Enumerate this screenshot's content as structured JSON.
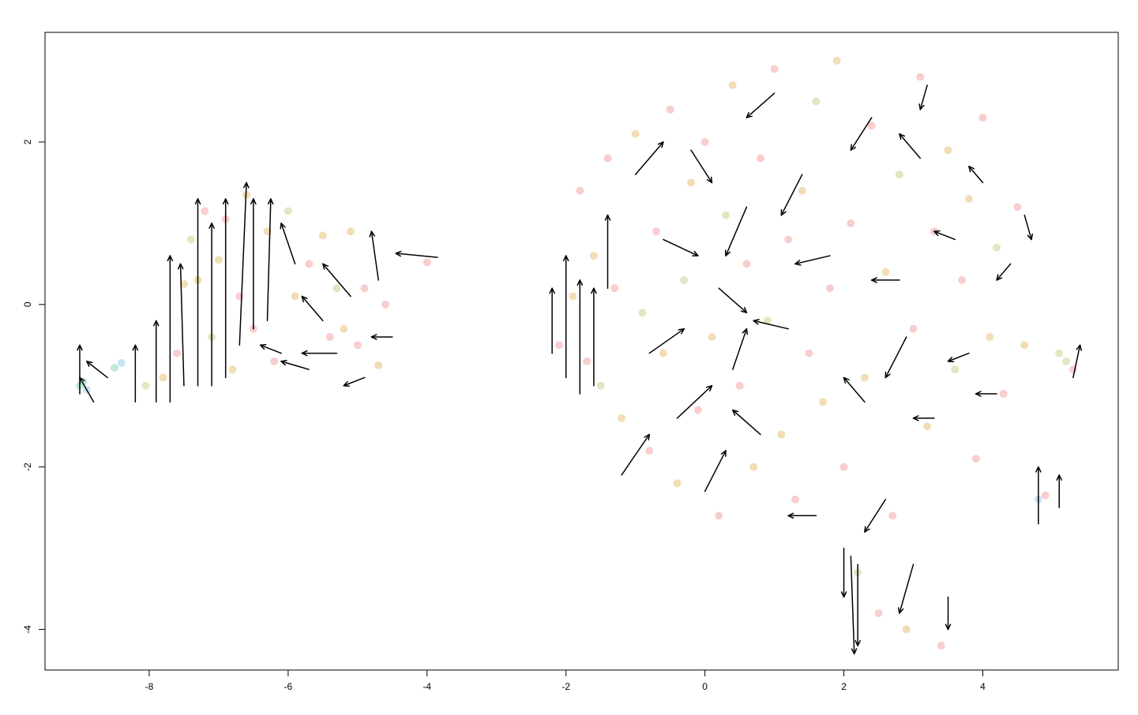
{
  "chart_data": {
    "type": "scatter",
    "title": "",
    "xlabel": "",
    "ylabel": "",
    "xlim": [
      -9.5,
      5.95
    ],
    "ylim": [
      -4.5,
      3.35
    ],
    "grid": false,
    "legend": "none",
    "x_ticks": [
      -8,
      -6,
      -4,
      -2,
      0,
      2,
      4
    ],
    "y_ticks": [
      -4,
      -2,
      0,
      2
    ],
    "colors": {
      "salmon": "#f4a6a6",
      "ochre": "#e8c27a",
      "olive": "#c9d38c",
      "teal": "#8fd8c0",
      "sky": "#9ad0ec",
      "arrow": "#000000"
    },
    "points": [
      {
        "x": -9.0,
        "y": -1.0,
        "c": "teal"
      },
      {
        "x": -8.95,
        "y": -0.95,
        "c": "teal"
      },
      {
        "x": -8.9,
        "y": -1.05,
        "c": "sky"
      },
      {
        "x": -8.5,
        "y": -0.78,
        "c": "teal"
      },
      {
        "x": -8.4,
        "y": -0.72,
        "c": "sky"
      },
      {
        "x": -8.05,
        "y": -1.0,
        "c": "olive"
      },
      {
        "x": -7.8,
        "y": -0.9,
        "c": "ochre"
      },
      {
        "x": -7.6,
        "y": -0.6,
        "c": "salmon"
      },
      {
        "x": -7.5,
        "y": 0.25,
        "c": "ochre"
      },
      {
        "x": -7.4,
        "y": 0.8,
        "c": "olive"
      },
      {
        "x": -7.3,
        "y": 0.3,
        "c": "ochre"
      },
      {
        "x": -7.2,
        "y": 1.15,
        "c": "salmon"
      },
      {
        "x": -7.1,
        "y": -0.4,
        "c": "olive"
      },
      {
        "x": -7.0,
        "y": 0.55,
        "c": "ochre"
      },
      {
        "x": -6.9,
        "y": 1.05,
        "c": "salmon"
      },
      {
        "x": -6.8,
        "y": -0.8,
        "c": "ochre"
      },
      {
        "x": -6.7,
        "y": 0.1,
        "c": "salmon"
      },
      {
        "x": -6.6,
        "y": 1.35,
        "c": "ochre"
      },
      {
        "x": -6.5,
        "y": -0.3,
        "c": "salmon"
      },
      {
        "x": -6.3,
        "y": 0.9,
        "c": "ochre"
      },
      {
        "x": -6.2,
        "y": -0.7,
        "c": "salmon"
      },
      {
        "x": -6.0,
        "y": 1.15,
        "c": "olive"
      },
      {
        "x": -5.9,
        "y": 0.1,
        "c": "ochre"
      },
      {
        "x": -5.7,
        "y": 0.5,
        "c": "salmon"
      },
      {
        "x": -5.5,
        "y": 0.85,
        "c": "ochre"
      },
      {
        "x": -5.4,
        "y": -0.4,
        "c": "salmon"
      },
      {
        "x": -5.3,
        "y": 0.2,
        "c": "olive"
      },
      {
        "x": -5.2,
        "y": -0.3,
        "c": "ochre"
      },
      {
        "x": -5.1,
        "y": 0.9,
        "c": "ochre"
      },
      {
        "x": -5.0,
        "y": -0.5,
        "c": "salmon"
      },
      {
        "x": -4.9,
        "y": 0.2,
        "c": "salmon"
      },
      {
        "x": -4.7,
        "y": -0.75,
        "c": "ochre"
      },
      {
        "x": -4.6,
        "y": 0.0,
        "c": "salmon"
      },
      {
        "x": -4.0,
        "y": 0.52,
        "c": "salmon"
      },
      {
        "x": -2.1,
        "y": -0.5,
        "c": "salmon"
      },
      {
        "x": -1.9,
        "y": 0.1,
        "c": "ochre"
      },
      {
        "x": -1.8,
        "y": 1.4,
        "c": "salmon"
      },
      {
        "x": -1.7,
        "y": -0.7,
        "c": "salmon"
      },
      {
        "x": -1.6,
        "y": 0.6,
        "c": "ochre"
      },
      {
        "x": -1.5,
        "y": -1.0,
        "c": "olive"
      },
      {
        "x": -1.4,
        "y": 1.8,
        "c": "salmon"
      },
      {
        "x": -1.3,
        "y": 0.2,
        "c": "salmon"
      },
      {
        "x": -1.2,
        "y": -1.4,
        "c": "ochre"
      },
      {
        "x": -1.0,
        "y": 2.1,
        "c": "ochre"
      },
      {
        "x": -0.9,
        "y": -0.1,
        "c": "olive"
      },
      {
        "x": -0.8,
        "y": -1.8,
        "c": "salmon"
      },
      {
        "x": -0.7,
        "y": 0.9,
        "c": "salmon"
      },
      {
        "x": -0.6,
        "y": -0.6,
        "c": "ochre"
      },
      {
        "x": -0.5,
        "y": 2.4,
        "c": "salmon"
      },
      {
        "x": -0.4,
        "y": -2.2,
        "c": "ochre"
      },
      {
        "x": -0.3,
        "y": 0.3,
        "c": "olive"
      },
      {
        "x": -0.2,
        "y": 1.5,
        "c": "ochre"
      },
      {
        "x": -0.1,
        "y": -1.3,
        "c": "salmon"
      },
      {
        "x": 0.0,
        "y": 2.0,
        "c": "salmon"
      },
      {
        "x": 0.1,
        "y": -0.4,
        "c": "ochre"
      },
      {
        "x": 0.2,
        "y": -2.6,
        "c": "salmon"
      },
      {
        "x": 0.3,
        "y": 1.1,
        "c": "olive"
      },
      {
        "x": 0.4,
        "y": 2.7,
        "c": "ochre"
      },
      {
        "x": 0.5,
        "y": -1.0,
        "c": "salmon"
      },
      {
        "x": 0.6,
        "y": 0.5,
        "c": "salmon"
      },
      {
        "x": 0.7,
        "y": -2.0,
        "c": "ochre"
      },
      {
        "x": 0.8,
        "y": 1.8,
        "c": "salmon"
      },
      {
        "x": 0.9,
        "y": -0.2,
        "c": "olive"
      },
      {
        "x": 1.0,
        "y": 2.9,
        "c": "salmon"
      },
      {
        "x": 1.1,
        "y": -1.6,
        "c": "ochre"
      },
      {
        "x": 1.2,
        "y": 0.8,
        "c": "salmon"
      },
      {
        "x": 1.3,
        "y": -2.4,
        "c": "salmon"
      },
      {
        "x": 1.4,
        "y": 1.4,
        "c": "ochre"
      },
      {
        "x": 1.5,
        "y": -0.6,
        "c": "salmon"
      },
      {
        "x": 1.6,
        "y": 2.5,
        "c": "olive"
      },
      {
        "x": 1.7,
        "y": -1.2,
        "c": "ochre"
      },
      {
        "x": 1.8,
        "y": 0.2,
        "c": "salmon"
      },
      {
        "x": 1.9,
        "y": 3.0,
        "c": "ochre"
      },
      {
        "x": 2.0,
        "y": -2.0,
        "c": "salmon"
      },
      {
        "x": 2.1,
        "y": 1.0,
        "c": "salmon"
      },
      {
        "x": 2.2,
        "y": -3.3,
        "c": "olive"
      },
      {
        "x": 2.3,
        "y": -0.9,
        "c": "ochre"
      },
      {
        "x": 2.4,
        "y": 2.2,
        "c": "salmon"
      },
      {
        "x": 2.5,
        "y": -3.8,
        "c": "salmon"
      },
      {
        "x": 2.6,
        "y": 0.4,
        "c": "ochre"
      },
      {
        "x": 2.7,
        "y": -2.6,
        "c": "salmon"
      },
      {
        "x": 2.8,
        "y": 1.6,
        "c": "olive"
      },
      {
        "x": 2.9,
        "y": -4.0,
        "c": "ochre"
      },
      {
        "x": 3.0,
        "y": -0.3,
        "c": "salmon"
      },
      {
        "x": 3.1,
        "y": 2.8,
        "c": "salmon"
      },
      {
        "x": 3.2,
        "y": -1.5,
        "c": "ochre"
      },
      {
        "x": 3.3,
        "y": 0.9,
        "c": "salmon"
      },
      {
        "x": 3.4,
        "y": -4.2,
        "c": "salmon"
      },
      {
        "x": 3.5,
        "y": 1.9,
        "c": "ochre"
      },
      {
        "x": 3.6,
        "y": -0.8,
        "c": "olive"
      },
      {
        "x": 3.7,
        "y": 0.3,
        "c": "salmon"
      },
      {
        "x": 3.8,
        "y": 1.3,
        "c": "ochre"
      },
      {
        "x": 3.9,
        "y": -1.9,
        "c": "salmon"
      },
      {
        "x": 4.0,
        "y": 2.3,
        "c": "salmon"
      },
      {
        "x": 4.1,
        "y": -0.4,
        "c": "ochre"
      },
      {
        "x": 4.2,
        "y": 0.7,
        "c": "olive"
      },
      {
        "x": 4.3,
        "y": -1.1,
        "c": "salmon"
      },
      {
        "x": 4.5,
        "y": 1.2,
        "c": "salmon"
      },
      {
        "x": 4.6,
        "y": -0.5,
        "c": "ochre"
      },
      {
        "x": 4.8,
        "y": -2.4,
        "c": "sky"
      },
      {
        "x": 4.9,
        "y": -2.35,
        "c": "salmon"
      },
      {
        "x": 5.1,
        "y": -0.6,
        "c": "olive"
      },
      {
        "x": 5.2,
        "y": -0.7,
        "c": "olive"
      },
      {
        "x": 5.3,
        "y": -0.8,
        "c": "salmon"
      }
    ],
    "arrows": [
      {
        "x": -9.0,
        "y": -1.1,
        "dx": 0.0,
        "dy": 0.6
      },
      {
        "x": -8.8,
        "y": -1.2,
        "dx": -0.2,
        "dy": 0.3
      },
      {
        "x": -8.6,
        "y": -0.9,
        "dx": -0.3,
        "dy": 0.2
      },
      {
        "x": -8.2,
        "y": -1.2,
        "dx": 0.0,
        "dy": 0.7
      },
      {
        "x": -7.9,
        "y": -1.2,
        "dx": 0.0,
        "dy": 1.0
      },
      {
        "x": -7.7,
        "y": -1.2,
        "dx": 0.0,
        "dy": 1.8
      },
      {
        "x": -7.5,
        "y": -1.0,
        "dx": -0.05,
        "dy": 1.5
      },
      {
        "x": -7.3,
        "y": -1.0,
        "dx": 0.0,
        "dy": 2.3
      },
      {
        "x": -7.1,
        "y": -1.0,
        "dx": 0.0,
        "dy": 2.0
      },
      {
        "x": -6.9,
        "y": -0.9,
        "dx": 0.0,
        "dy": 2.2
      },
      {
        "x": -6.7,
        "y": -0.5,
        "dx": 0.1,
        "dy": 2.0
      },
      {
        "x": -6.5,
        "y": -0.3,
        "dx": 0.0,
        "dy": 1.6
      },
      {
        "x": -6.3,
        "y": -0.2,
        "dx": 0.05,
        "dy": 1.5
      },
      {
        "x": -6.1,
        "y": -0.6,
        "dx": -0.3,
        "dy": 0.1
      },
      {
        "x": -5.9,
        "y": 0.5,
        "dx": -0.2,
        "dy": 0.5
      },
      {
        "x": -5.7,
        "y": -0.8,
        "dx": -0.4,
        "dy": 0.1
      },
      {
        "x": -5.5,
        "y": -0.2,
        "dx": -0.3,
        "dy": 0.3
      },
      {
        "x": -5.3,
        "y": -0.6,
        "dx": -0.5,
        "dy": 0.0
      },
      {
        "x": -5.1,
        "y": 0.1,
        "dx": -0.4,
        "dy": 0.4
      },
      {
        "x": -4.9,
        "y": -0.9,
        "dx": -0.3,
        "dy": -0.1
      },
      {
        "x": -4.7,
        "y": 0.3,
        "dx": -0.1,
        "dy": 0.6
      },
      {
        "x": -4.5,
        "y": -0.4,
        "dx": -0.3,
        "dy": 0.0
      },
      {
        "x": -3.85,
        "y": 0.58,
        "dx": -0.6,
        "dy": 0.05
      },
      {
        "x": -2.2,
        "y": -0.6,
        "dx": 0.0,
        "dy": 0.8
      },
      {
        "x": -2.0,
        "y": -0.9,
        "dx": 0.0,
        "dy": 1.5
      },
      {
        "x": -1.8,
        "y": -1.1,
        "dx": 0.0,
        "dy": 1.4
      },
      {
        "x": -1.6,
        "y": -1.0,
        "dx": 0.0,
        "dy": 1.2
      },
      {
        "x": -1.4,
        "y": 0.2,
        "dx": 0.0,
        "dy": 0.9
      },
      {
        "x": -1.2,
        "y": -2.1,
        "dx": 0.4,
        "dy": 0.5
      },
      {
        "x": -1.0,
        "y": 1.6,
        "dx": 0.4,
        "dy": 0.4
      },
      {
        "x": -0.8,
        "y": -0.6,
        "dx": 0.5,
        "dy": 0.3
      },
      {
        "x": -0.6,
        "y": 0.8,
        "dx": 0.5,
        "dy": -0.2
      },
      {
        "x": -0.4,
        "y": -1.4,
        "dx": 0.5,
        "dy": 0.4
      },
      {
        "x": -0.2,
        "y": 1.9,
        "dx": 0.3,
        "dy": -0.4
      },
      {
        "x": 0.0,
        "y": -2.3,
        "dx": 0.3,
        "dy": 0.5
      },
      {
        "x": 0.2,
        "y": 0.2,
        "dx": 0.4,
        "dy": -0.3
      },
      {
        "x": 0.4,
        "y": -0.8,
        "dx": 0.2,
        "dy": 0.5
      },
      {
        "x": 0.6,
        "y": 1.2,
        "dx": -0.3,
        "dy": -0.6
      },
      {
        "x": 0.8,
        "y": -1.6,
        "dx": -0.4,
        "dy": 0.3
      },
      {
        "x": 1.0,
        "y": 2.6,
        "dx": -0.4,
        "dy": -0.3
      },
      {
        "x": 1.2,
        "y": -0.3,
        "dx": -0.5,
        "dy": 0.1
      },
      {
        "x": 1.4,
        "y": 1.6,
        "dx": -0.3,
        "dy": -0.5
      },
      {
        "x": 1.6,
        "y": -2.6,
        "dx": -0.4,
        "dy": 0.0
      },
      {
        "x": 1.8,
        "y": 0.6,
        "dx": -0.5,
        "dy": -0.1
      },
      {
        "x": 2.0,
        "y": -3.0,
        "dx": 0.0,
        "dy": -0.6
      },
      {
        "x": 2.1,
        "y": -3.1,
        "dx": 0.05,
        "dy": -1.2
      },
      {
        "x": 2.2,
        "y": -3.2,
        "dx": 0.0,
        "dy": -1.0
      },
      {
        "x": 2.3,
        "y": -1.2,
        "dx": -0.3,
        "dy": 0.3
      },
      {
        "x": 2.4,
        "y": 2.3,
        "dx": -0.3,
        "dy": -0.4
      },
      {
        "x": 2.6,
        "y": -2.4,
        "dx": -0.3,
        "dy": -0.4
      },
      {
        "x": 2.8,
        "y": 0.3,
        "dx": -0.4,
        "dy": 0.0
      },
      {
        "x": 2.9,
        "y": -0.4,
        "dx": -0.3,
        "dy": -0.5
      },
      {
        "x": 3.0,
        "y": -3.2,
        "dx": -0.2,
        "dy": -0.6
      },
      {
        "x": 3.1,
        "y": 1.8,
        "dx": -0.3,
        "dy": 0.3
      },
      {
        "x": 3.2,
        "y": 2.7,
        "dx": -0.1,
        "dy": -0.3
      },
      {
        "x": 3.3,
        "y": -1.4,
        "dx": -0.3,
        "dy": 0.0
      },
      {
        "x": 3.5,
        "y": -3.6,
        "dx": 0.0,
        "dy": -0.4
      },
      {
        "x": 3.6,
        "y": 0.8,
        "dx": -0.3,
        "dy": 0.1
      },
      {
        "x": 3.8,
        "y": -0.6,
        "dx": -0.3,
        "dy": -0.1
      },
      {
        "x": 4.0,
        "y": 1.5,
        "dx": -0.2,
        "dy": 0.2
      },
      {
        "x": 4.2,
        "y": -1.1,
        "dx": -0.3,
        "dy": 0.0
      },
      {
        "x": 4.4,
        "y": 0.5,
        "dx": -0.2,
        "dy": -0.2
      },
      {
        "x": 4.6,
        "y": 1.1,
        "dx": 0.1,
        "dy": -0.3
      },
      {
        "x": 4.8,
        "y": -2.7,
        "dx": 0.0,
        "dy": 0.7
      },
      {
        "x": 5.1,
        "y": -2.5,
        "dx": 0.0,
        "dy": 0.4
      },
      {
        "x": 5.3,
        "y": -0.9,
        "dx": 0.1,
        "dy": 0.4
      }
    ]
  }
}
